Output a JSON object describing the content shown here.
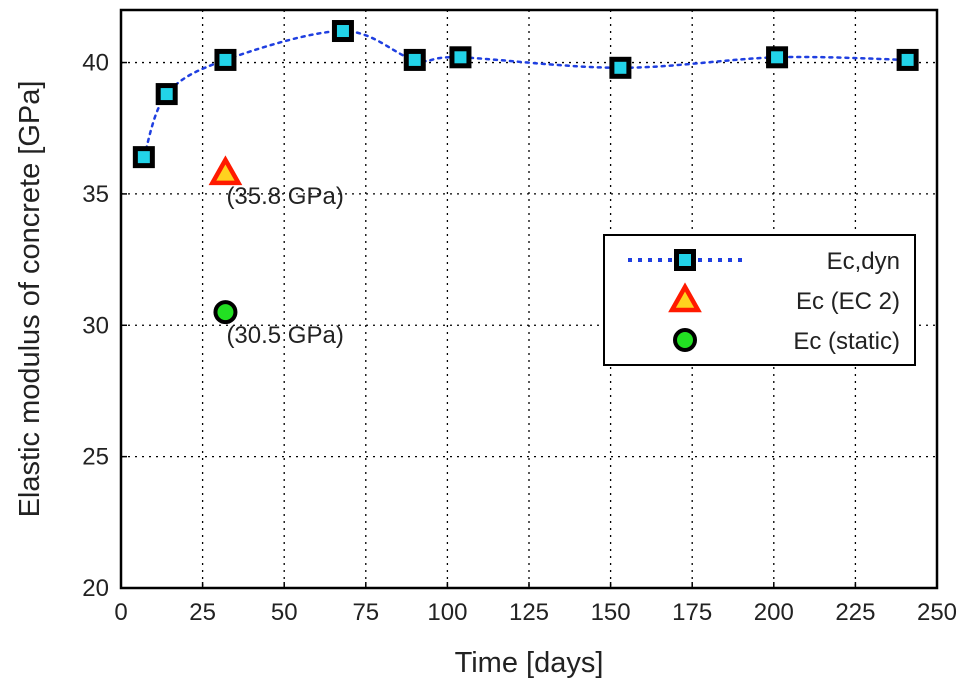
{
  "chart_data": {
    "type": "scatter",
    "xlabel": "Time [days]",
    "ylabel": "Elastic modulus of concrete [GPa]",
    "xlim": [
      0,
      250
    ],
    "ylim": [
      20,
      42
    ],
    "xticks": [
      0,
      25,
      50,
      75,
      100,
      125,
      150,
      175,
      200,
      225,
      250
    ],
    "yticks": [
      20,
      25,
      30,
      35,
      40
    ],
    "grid": true,
    "legend_position": "center-right",
    "series": [
      {
        "name": "Ec,dyn",
        "style": "dotted-line-with-square-markers",
        "line_color": "#1f3fe0",
        "marker_fill": "#22d3e8",
        "marker_edge": "#000000",
        "x": [
          7,
          14,
          32,
          68,
          90,
          104,
          153,
          201,
          241
        ],
        "y": [
          36.4,
          38.8,
          40.1,
          41.2,
          40.1,
          40.2,
          39.8,
          40.2,
          40.1
        ]
      },
      {
        "name": "Ec (EC 2)",
        "style": "triangle-marker",
        "marker_fill": "#ffd21f",
        "marker_edge": "#ff1a00",
        "x": [
          32
        ],
        "y": [
          35.8
        ]
      },
      {
        "name": "Ec (static)",
        "style": "circle-marker",
        "marker_fill": "#22e022",
        "marker_edge": "#000000",
        "x": [
          32
        ],
        "y": [
          30.5
        ]
      }
    ],
    "annotations": [
      {
        "text": "(35.8 GPa)",
        "x": 32,
        "y": 35.8
      },
      {
        "text": "(30.5 GPa)",
        "x": 32,
        "y": 30.5
      }
    ]
  }
}
